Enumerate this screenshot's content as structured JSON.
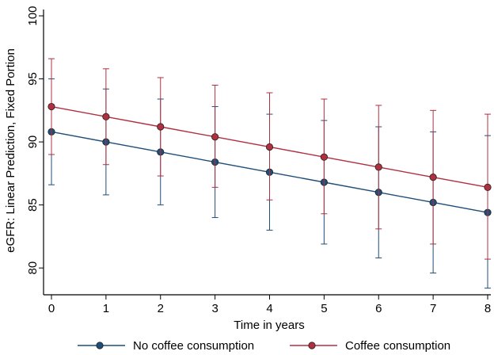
{
  "chart_data": {
    "type": "line",
    "xlabel": "Time in years",
    "ylabel": "eGFR: Linear Prediction, Fixed Portion",
    "x": [
      0,
      1,
      2,
      3,
      4,
      5,
      6,
      7,
      8
    ],
    "xlim": [
      0,
      8
    ],
    "ylim": [
      78,
      100
    ],
    "x_ticks": [
      "0",
      "1",
      "2",
      "3",
      "4",
      "5",
      "6",
      "7",
      "8"
    ],
    "y_ticks": [
      "80",
      "85",
      "90",
      "95",
      "100"
    ],
    "grid": false,
    "legend_position": "bottom",
    "series": [
      {
        "name": "No coffee consumption",
        "color": "#1f4e79",
        "values": [
          90.8,
          90.0,
          89.2,
          88.4,
          87.6,
          86.8,
          86.0,
          85.2,
          84.4
        ],
        "ci_lower": [
          86.6,
          85.8,
          85.0,
          84.0,
          83.0,
          81.9,
          80.8,
          79.6,
          78.4
        ],
        "ci_upper": [
          95.0,
          94.2,
          93.4,
          92.8,
          92.2,
          91.7,
          91.2,
          90.8,
          90.5
        ]
      },
      {
        "name": "Coffee consumption",
        "color": "#b03040",
        "values": [
          92.8,
          92.0,
          91.2,
          90.4,
          89.6,
          88.8,
          88.0,
          87.2,
          86.4
        ],
        "ci_lower": [
          89.0,
          88.2,
          87.3,
          86.4,
          85.4,
          84.3,
          83.1,
          81.9,
          80.7
        ],
        "ci_upper": [
          96.6,
          95.8,
          95.1,
          94.5,
          93.9,
          93.4,
          92.9,
          92.5,
          92.2
        ]
      }
    ]
  }
}
